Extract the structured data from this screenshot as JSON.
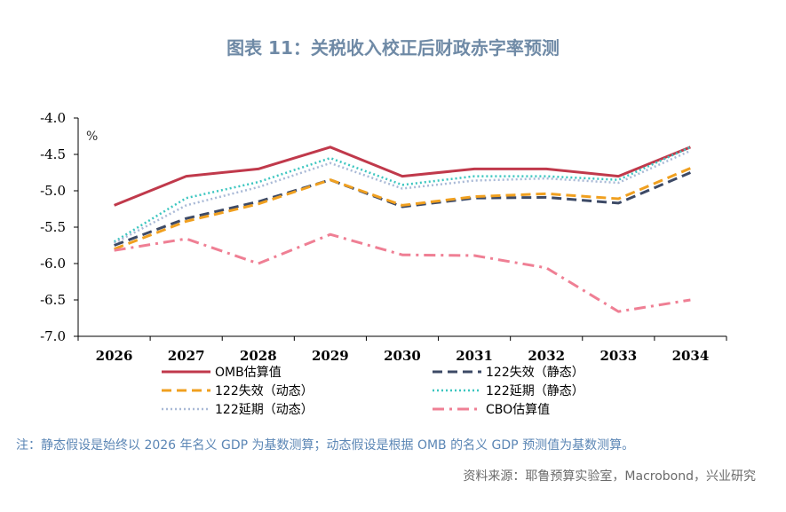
{
  "title": "图表 11：关税收入校正后财政赤字率预测",
  "note": "注：静态假设是始终以 2026 年名义 GDP 为基数测算；动态假设是根据 OMB 的名义 GDP 预测值为基数测算。",
  "source": "资料来源：耶鲁预算实验室，Macrobond，兴业研究",
  "chart_data": {
    "type": "line",
    "unit_label": "%",
    "x": [
      "2026",
      "2027",
      "2028",
      "2029",
      "2030",
      "2031",
      "2032",
      "2033",
      "2034"
    ],
    "ylim": [
      -7.0,
      -4.0
    ],
    "yticks": [
      "-4.0",
      "-4.5",
      "-5.0",
      "-5.5",
      "-6.0",
      "-6.5",
      "-7.0"
    ],
    "ytick_values": [
      -4.0,
      -4.5,
      -5.0,
      -5.5,
      -6.0,
      -6.5,
      -7.0
    ],
    "grid": false,
    "legend_position": "bottom",
    "series": [
      {
        "name": "OMB估算值",
        "color": "#c0394b",
        "dash": "solid",
        "values": [
          -5.2,
          -4.8,
          -4.7,
          -4.4,
          -4.8,
          -4.7,
          -4.7,
          -4.8,
          -4.4
        ]
      },
      {
        "name": "122失效（静态）",
        "color": "#3d4a66",
        "dash": "dash",
        "values": [
          -5.75,
          -5.38,
          -5.15,
          -4.85,
          -5.22,
          -5.1,
          -5.09,
          -5.17,
          -4.75
        ]
      },
      {
        "name": "122失效（动态）",
        "color": "#f0a020",
        "dash": "dash",
        "values": [
          -5.8,
          -5.42,
          -5.18,
          -4.85,
          -5.2,
          -5.08,
          -5.04,
          -5.11,
          -4.69
        ]
      },
      {
        "name": "122延期（静态）",
        "color": "#3cc6c0",
        "dash": "dot",
        "values": [
          -5.7,
          -5.1,
          -4.88,
          -4.55,
          -4.92,
          -4.8,
          -4.8,
          -4.85,
          -4.4
        ]
      },
      {
        "name": "122延期（动态）",
        "color": "#a9b9d6",
        "dash": "dot",
        "values": [
          -5.72,
          -5.2,
          -4.95,
          -4.62,
          -4.97,
          -4.86,
          -4.83,
          -4.89,
          -4.45
        ]
      },
      {
        "name": "CBO估算值",
        "color": "#ef7f94",
        "dash": "dashdot",
        "values": [
          -5.82,
          -5.66,
          -6.0,
          -5.6,
          -5.88,
          -5.89,
          -6.06,
          -6.66,
          -6.5
        ]
      }
    ]
  }
}
